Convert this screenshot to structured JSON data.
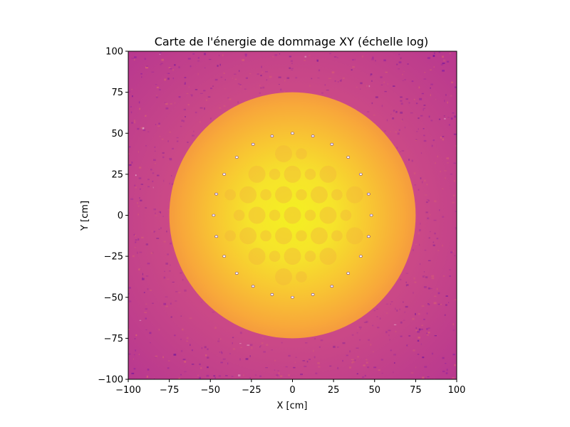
{
  "chart_data": {
    "type": "heatmap",
    "title": "Carte de l'énergie de dommage XY (échelle log)",
    "xlabel": "X [cm]",
    "ylabel": "Y [cm]",
    "xlim": [
      -100,
      100
    ],
    "ylim": [
      -100,
      100
    ],
    "xticks": [
      "−100",
      "−75",
      "−50",
      "−25",
      "0",
      "25",
      "50",
      "75",
      "100"
    ],
    "yticks": [
      "−100",
      "−75",
      "−50",
      "−25",
      "0",
      "25",
      "50",
      "75",
      "100"
    ],
    "xtick_values": [
      -100,
      -75,
      -50,
      -25,
      0,
      25,
      50,
      75,
      100
    ],
    "ytick_values": [
      -100,
      -75,
      -50,
      -25,
      0,
      25,
      50,
      75,
      100
    ],
    "colormap": "plasma",
    "scale": "log",
    "core_radius": 75,
    "grid": false,
    "colors": {
      "background_outer": "#c0438e",
      "core_edge": "#f79a3a",
      "core_center": "#f3ee26",
      "pin_highlight": "#f6c83a"
    }
  }
}
